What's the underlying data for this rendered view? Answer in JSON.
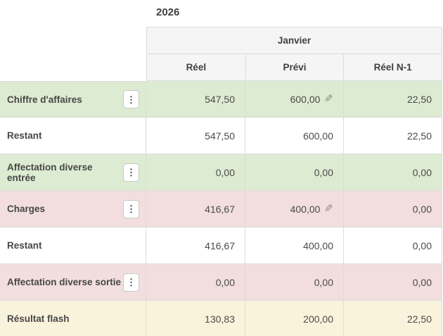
{
  "page": {
    "year_title": "2026"
  },
  "table": {
    "month_header": "Janvier",
    "columns": [
      {
        "label": "Réel"
      },
      {
        "label": "Prévi"
      },
      {
        "label": "Réel N-1"
      }
    ],
    "rows": [
      {
        "label": "Chiffre d'affaires",
        "reel": "547,50",
        "previ": "600,00",
        "reel_n1": "22,50",
        "has_menu": true,
        "previ_editable": true
      },
      {
        "label": "Restant",
        "reel": "547,50",
        "previ": "600,00",
        "reel_n1": "22,50",
        "has_menu": false,
        "previ_editable": false
      },
      {
        "label": "Affectation diverse entrée",
        "reel": "0,00",
        "previ": "0,00",
        "reel_n1": "0,00",
        "has_menu": true,
        "previ_editable": false
      },
      {
        "label": "Charges",
        "reel": "416,67",
        "previ": "400,00",
        "reel_n1": "0,00",
        "has_menu": true,
        "previ_editable": true
      },
      {
        "label": "Restant",
        "reel": "416,67",
        "previ": "400,00",
        "reel_n1": "0,00",
        "has_menu": false,
        "previ_editable": false
      },
      {
        "label": "Affectation diverse sortie",
        "reel": "0,00",
        "previ": "0,00",
        "reel_n1": "0,00",
        "has_menu": true,
        "previ_editable": false
      },
      {
        "label": "Résultat flash",
        "reel": "130,83",
        "previ": "200,00",
        "reel_n1": "22,50",
        "has_menu": false,
        "previ_editable": false
      }
    ],
    "icons": {
      "row_menu_glyph": "⋮",
      "edit_glyph": "✎"
    }
  },
  "colors": {
    "revenue_row_bg": "#ddebd2",
    "charges_row_bg": "#f2dede",
    "result_row_bg": "#faf3dc",
    "header_bg": "#f5f5f5",
    "border": "#dcdcdc"
  }
}
